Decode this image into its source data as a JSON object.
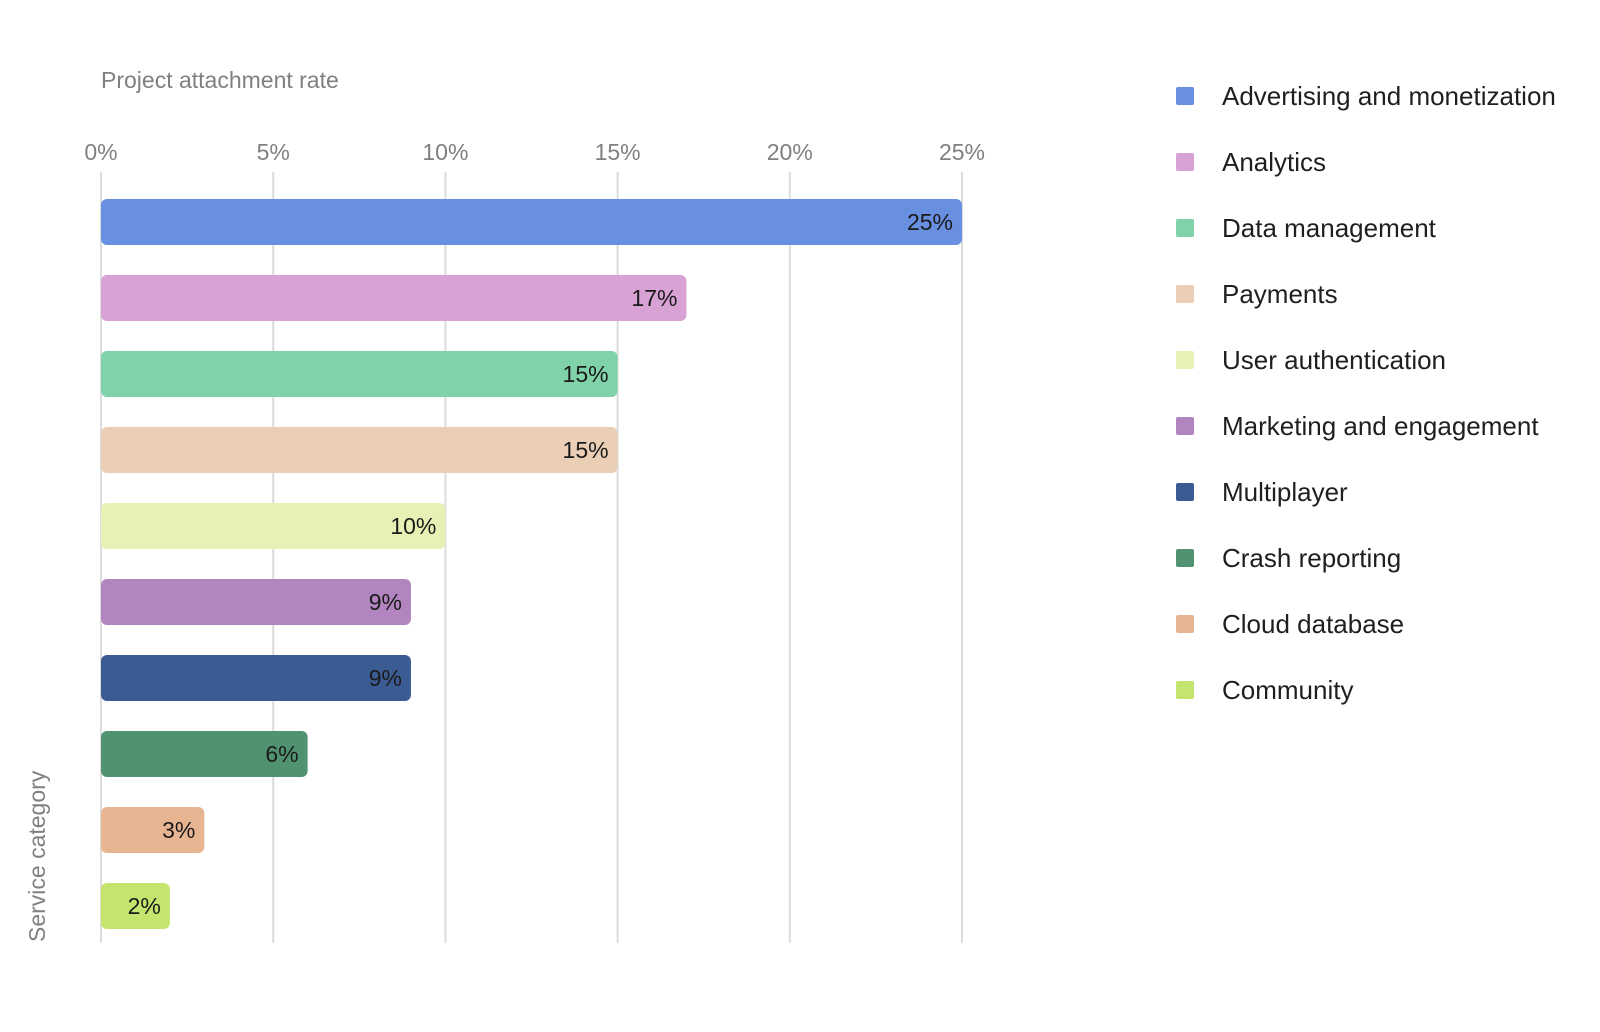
{
  "chart_data": {
    "type": "bar",
    "orientation": "horizontal",
    "xlabel": "Project attachment rate",
    "ylabel": "Service category",
    "xlim": [
      0,
      25
    ],
    "x_ticks": [
      "0%",
      "5%",
      "10%",
      "15%",
      "20%",
      "25%"
    ],
    "x_tick_values": [
      0,
      5,
      10,
      15,
      20,
      25
    ],
    "grid": true,
    "legend_position": "right",
    "categories": [
      "Advertising and monetization",
      "Analytics",
      "Data management",
      "Payments",
      "User authentication",
      "Marketing and engagement",
      "Multiplayer",
      "Crash reporting",
      "Cloud database",
      "Community"
    ],
    "values": [
      25,
      17,
      15,
      15,
      10,
      9,
      9,
      6,
      3,
      2
    ],
    "data_labels": [
      "25%",
      "17%",
      "15%",
      "15%",
      "10%",
      "9%",
      "9%",
      "6%",
      "3%",
      "2%"
    ],
    "colors": [
      "#6990e0",
      "#d9a2d5",
      "#80d2a8",
      "#eaceb5",
      "#e8f1b5",
      "#b285c0",
      "#3b5c92",
      "#519371",
      "#e8b593",
      "#c3e56d"
    ]
  }
}
